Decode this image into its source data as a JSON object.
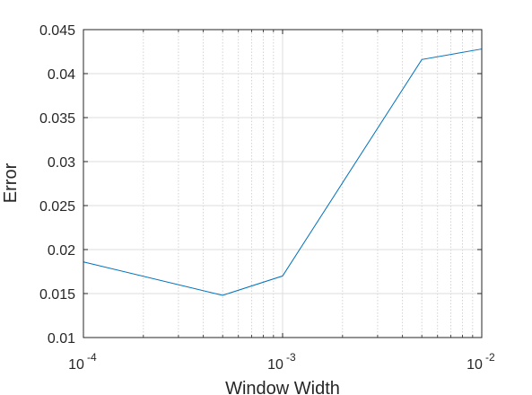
{
  "chart_data": {
    "type": "line",
    "xlabel": "Window Width",
    "ylabel": "Error",
    "x_scale": "log",
    "xlim": [
      0.0001,
      0.01
    ],
    "ylim": [
      0.01,
      0.045
    ],
    "grid": true,
    "series_color": "#0072BD",
    "x_ticks": [
      {
        "base": "10",
        "exp": "-4"
      },
      {
        "base": "10",
        "exp": "-3"
      },
      {
        "base": "10",
        "exp": "-2"
      }
    ],
    "y_ticks": [
      "0.01",
      "0.015",
      "0.02",
      "0.025",
      "0.03",
      "0.035",
      "0.04",
      "0.045"
    ],
    "series": [
      {
        "x": [
          0.0001,
          0.0005,
          0.001,
          0.005,
          0.01
        ],
        "y": [
          0.0186,
          0.0148,
          0.017,
          0.0416,
          0.0428
        ]
      }
    ]
  }
}
